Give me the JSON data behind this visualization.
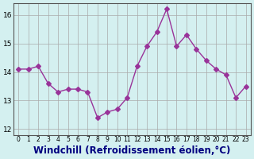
{
  "x": [
    0,
    1,
    2,
    3,
    4,
    5,
    6,
    7,
    8,
    9,
    10,
    11,
    12,
    13,
    14,
    15,
    16,
    17,
    18,
    19,
    20,
    21,
    22,
    23
  ],
  "y": [
    14.1,
    14.1,
    14.2,
    13.6,
    13.3,
    13.4,
    13.4,
    13.3,
    12.4,
    12.6,
    12.7,
    13.1,
    14.2,
    14.9,
    15.4,
    16.2,
    14.9,
    15.3,
    14.8,
    14.4,
    14.1,
    13.9,
    13.1,
    13.5
  ],
  "line_color": "#993399",
  "marker": "D",
  "marker_size": 3,
  "bg_color": "#d4f0f0",
  "grid_color": "#aaaaaa",
  "xlabel": "Windchill (Refroidissement éolien,°C)",
  "xlabel_color": "#000080",
  "xlabel_fontsize": 8.5,
  "xtick_labels": [
    "0",
    "1",
    "2",
    "3",
    "4",
    "5",
    "6",
    "7",
    "8",
    "9",
    "10",
    "11",
    "12",
    "13",
    "14",
    "15",
    "16",
    "17",
    "18",
    "19",
    "20",
    "21",
    "22",
    "23"
  ],
  "ytick_labels": [
    "12",
    "13",
    "14",
    "15",
    "16"
  ],
  "ylim": [
    11.8,
    16.4
  ],
  "xlim": [
    -0.5,
    23.5
  ],
  "left_spine_color": "#555555",
  "bottom_spine_color": "#555555"
}
